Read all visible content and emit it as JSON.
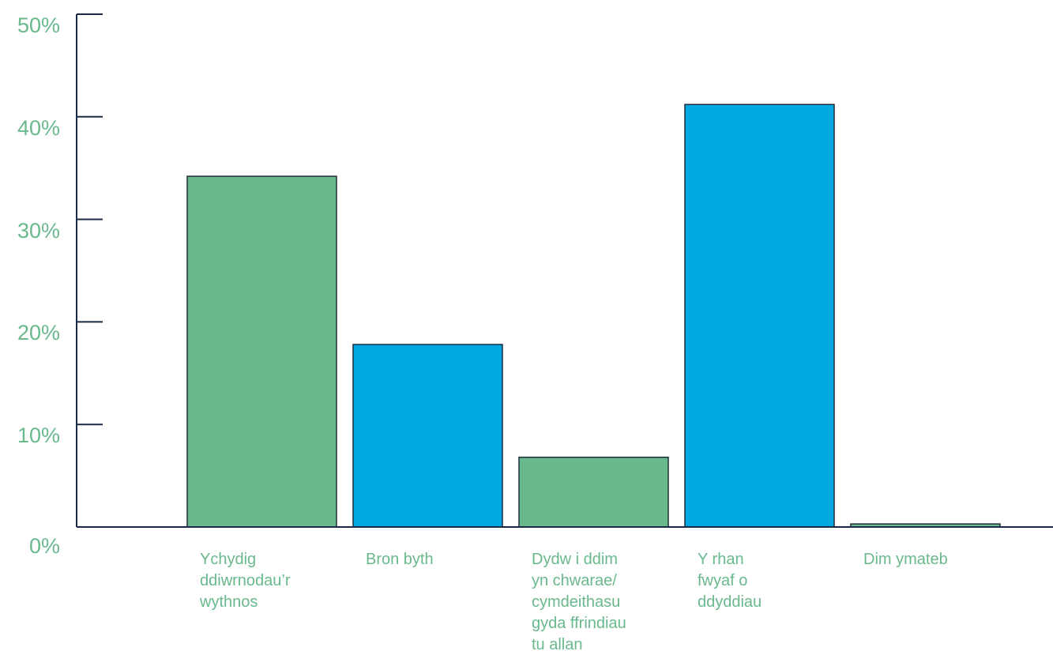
{
  "chart_data": {
    "type": "bar",
    "title": "",
    "xlabel": "",
    "ylabel": "",
    "ylim": [
      0,
      50
    ],
    "yticks": [
      0,
      10,
      20,
      30,
      40,
      50
    ],
    "ytick_labels": [
      "0%",
      "10%",
      "20%",
      "30%",
      "40%",
      "50%"
    ],
    "grid": false,
    "legend": "none",
    "categories": [
      "Ychydig\nddiwrnodau’r\nwythnos",
      "Bron byth",
      "Dydw i ddim\nyn chwarae/\ncymdeithasu\ngyda ffrindiau\ntu allan",
      "Y rhan\nfwyaf o\nddyddiau",
      "Dim ymateb"
    ],
    "values": [
      34.2,
      17.8,
      6.8,
      41.2,
      0.3
    ],
    "bar_colors": [
      "#69b98c",
      "#00a8e1",
      "#69b98c",
      "#00a8e1",
      "#69b98c"
    ],
    "label_color": "#69b98c",
    "axis_color": "#1a2a44"
  }
}
